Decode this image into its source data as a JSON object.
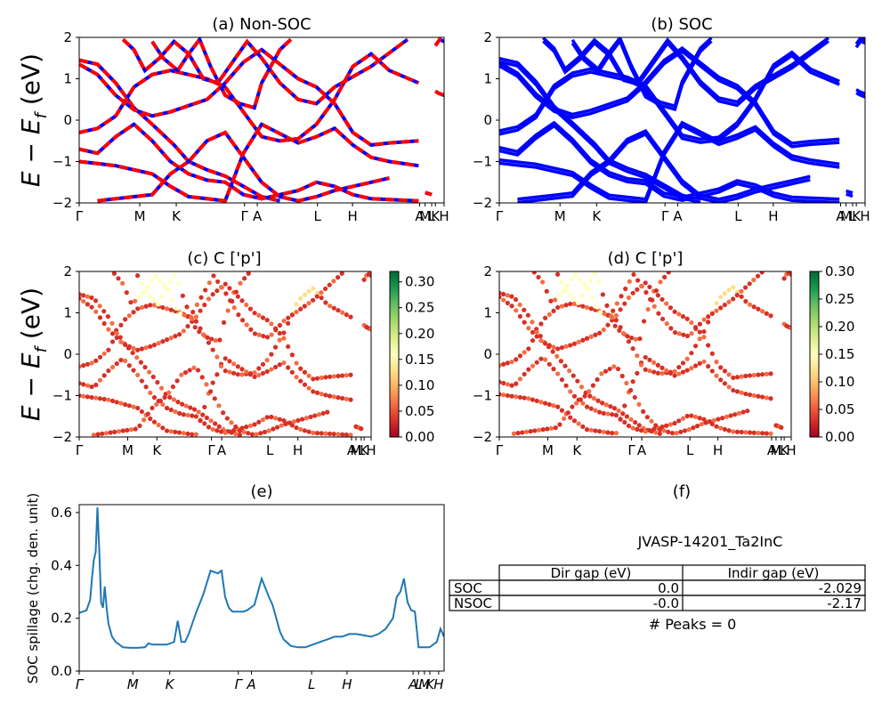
{
  "figure": {
    "ylabel_main": "E − E",
    "ylabel_sub": "f",
    "ylabel_unit": " (eV)",
    "tick_count": 0
  },
  "chart_data": [
    {
      "id": "a",
      "type": "line",
      "title": "(a) Non-SOC",
      "ylim": [
        -2,
        2
      ],
      "yticks": [
        "2",
        "1",
        "0",
        "−1",
        "−2"
      ],
      "xticks": [
        "Γ",
        "M",
        "K",
        "Γ",
        "A",
        "L",
        "H",
        "A",
        "M",
        "L",
        "K",
        "H"
      ],
      "xtick_pos": [
        0,
        0.166,
        0.266,
        0.453,
        0.488,
        0.653,
        0.749,
        0.933,
        0.948,
        0.966,
        0.976,
        1.0
      ],
      "series": [
        {
          "values": [
            1.45,
            1.35,
            0.9,
            0.3,
            -0.1,
            -0.6,
            -1.0,
            -1.2,
            -1.35,
            -1.6,
            -1.85,
            -1.95
          ],
          "x": [
            0,
            0.05,
            0.1,
            0.15,
            0.2,
            0.26,
            0.3,
            0.35,
            0.4,
            0.45,
            0.5,
            0.55
          ]
        },
        {
          "values": [
            1.35,
            1.1,
            0.6,
            0.25,
            0.1,
            0.2,
            0.35,
            0.5,
            0.9,
            1.4,
            1.7,
            1.35,
            1.0,
            0.8,
            0.4,
            -0.3,
            -0.6,
            -0.55,
            -0.5
          ],
          "x": [
            0,
            0.05,
            0.1,
            0.15,
            0.2,
            0.25,
            0.3,
            0.35,
            0.4,
            0.45,
            0.5,
            0.55,
            0.6,
            0.65,
            0.7,
            0.75,
            0.8,
            0.85,
            0.93
          ]
        },
        {
          "values": [
            -0.3,
            -0.2,
            0.1,
            0.8,
            1.1,
            1.2,
            1.1,
            1.0,
            0.8,
            0.2,
            -0.4,
            -0.5,
            -0.45,
            -0.1,
            0.5,
            1.3,
            1.6,
            1.2,
            0.9
          ],
          "x": [
            0,
            0.05,
            0.1,
            0.15,
            0.2,
            0.25,
            0.3,
            0.35,
            0.4,
            0.45,
            0.5,
            0.55,
            0.6,
            0.65,
            0.7,
            0.75,
            0.8,
            0.85,
            0.93
          ]
        },
        {
          "values": [
            -0.7,
            -0.8,
            -0.4,
            -0.1,
            -0.5,
            -1.0,
            -1.3,
            -1.45,
            -1.5,
            -1.8,
            -1.9,
            -1.8,
            -1.7,
            -1.5,
            -1.6,
            -1.8,
            -1.9,
            -1.95
          ],
          "x": [
            0,
            0.05,
            0.1,
            0.15,
            0.2,
            0.25,
            0.3,
            0.35,
            0.4,
            0.45,
            0.5,
            0.55,
            0.6,
            0.65,
            0.7,
            0.75,
            0.8,
            0.93
          ]
        },
        {
          "values": [
            -1.0,
            -1.05,
            -1.1,
            -1.2,
            -1.3,
            -1.6,
            -1.85,
            -1.9,
            -1.95,
            -0.8,
            -0.1,
            -0.55,
            -0.4,
            -0.2,
            -0.6,
            -0.9,
            -1.0,
            -1.1
          ],
          "x": [
            0,
            0.05,
            0.1,
            0.15,
            0.2,
            0.25,
            0.3,
            0.35,
            0.4,
            0.45,
            0.5,
            0.6,
            0.65,
            0.7,
            0.75,
            0.8,
            0.85,
            0.93
          ]
        },
        {
          "values": [
            -1.95,
            -1.9,
            -1.85,
            -1.8,
            -1.3,
            -1.0,
            -0.5,
            -0.3,
            -0.9,
            -1.5,
            -1.85,
            -1.95,
            -1.85,
            -1.7,
            -1.6,
            -1.5,
            -1.4
          ],
          "x": [
            0.05,
            0.1,
            0.15,
            0.2,
            0.25,
            0.3,
            0.35,
            0.4,
            0.45,
            0.5,
            0.55,
            0.6,
            0.65,
            0.7,
            0.75,
            0.8,
            0.85
          ]
        },
        {
          "values": [
            1.95,
            1.7,
            1.2,
            1.5,
            1.9,
            1.6,
            1.0,
            0.9,
            1.4,
            1.9,
            1.5,
            0.9,
            0.5,
            0.4,
            0.8,
            1.3,
            1.95
          ],
          "x": [
            0.12,
            0.15,
            0.18,
            0.22,
            0.26,
            0.3,
            0.34,
            0.38,
            0.42,
            0.46,
            0.5,
            0.55,
            0.6,
            0.65,
            0.7,
            0.8,
            0.9
          ]
        },
        {
          "values": [
            1.9,
            1.5,
            1.2,
            1.6,
            1.95,
            1.3,
            0.6,
            0.4,
            0.3,
            0.9,
            1.7,
            1.95
          ],
          "x": [
            0.2,
            0.23,
            0.27,
            0.3,
            0.33,
            0.36,
            0.4,
            0.44,
            0.48,
            0.5,
            0.55,
            0.58
          ]
        },
        {
          "values": [
            0.7,
            0.65,
            0.6
          ],
          "x": [
            0.976,
            0.985,
            1.0
          ]
        },
        {
          "values": [
            -1.75,
            -1.78,
            -1.8
          ],
          "x": [
            0.948,
            0.96,
            0.966
          ]
        },
        {
          "values": [
            1.8,
            1.95,
            1.9
          ],
          "x": [
            0.976,
            0.988,
            1.0
          ]
        }
      ]
    },
    {
      "id": "b",
      "type": "line",
      "title": "(b) SOC",
      "ylim": [
        -2,
        2
      ],
      "yticks": [
        "2",
        "1",
        "0",
        "−1",
        "−2"
      ],
      "xticks": [
        "Γ",
        "M",
        "K",
        "Γ",
        "A",
        "L",
        "H",
        "A",
        "M",
        "L",
        "K",
        "H"
      ],
      "xtick_pos": [
        0,
        0.166,
        0.266,
        0.453,
        0.488,
        0.653,
        0.749,
        0.933,
        0.948,
        0.966,
        0.976,
        1.0
      ]
    },
    {
      "id": "c",
      "type": "scatter",
      "title": "(c)  C ['p']",
      "ylim": [
        -2,
        2
      ],
      "yticks": [
        "2",
        "1",
        "0",
        "−1",
        "−2"
      ],
      "xticks": [
        "Γ",
        "M",
        "K",
        "Γ",
        "A",
        "L",
        "H",
        "A",
        "M",
        "L",
        "K",
        "H"
      ],
      "xtick_pos": [
        0,
        0.166,
        0.266,
        0.453,
        0.488,
        0.653,
        0.749,
        0.933,
        0.948,
        0.966,
        0.976,
        1.0
      ],
      "colorbar": {
        "ticks": [
          "0.00",
          "0.05",
          "0.10",
          "0.15",
          "0.20",
          "0.25",
          "0.30"
        ],
        "max": 0.32
      }
    },
    {
      "id": "d",
      "type": "scatter",
      "title": "(d) C ['p']",
      "ylim": [
        -2,
        2
      ],
      "yticks": [
        "2",
        "1",
        "0",
        "−1",
        "−2"
      ],
      "xticks": [
        "Γ",
        "M",
        "K",
        "Γ",
        "A",
        "L",
        "H",
        "A",
        "M",
        "L",
        "K",
        "H"
      ],
      "xtick_pos": [
        0,
        0.166,
        0.266,
        0.453,
        0.488,
        0.653,
        0.749,
        0.933,
        0.948,
        0.966,
        0.976,
        1.0
      ],
      "colorbar": {
        "ticks": [
          "0.00",
          "0.05",
          "0.10",
          "0.15",
          "0.20",
          "0.25",
          "0.30"
        ],
        "max": 0.3
      }
    },
    {
      "id": "e",
      "type": "line",
      "title": "(e)",
      "ylabel": "SOC spillage (chg. den. unit)",
      "ylim": [
        0,
        0.63
      ],
      "yticks": [
        "0.0",
        "0.2",
        "0.4",
        "0.6"
      ],
      "xticks": [
        "Γ",
        "M",
        "K",
        "Γ",
        "A",
        "L",
        "H",
        "A",
        "L",
        "M",
        "K",
        "H"
      ],
      "xtick_pos": [
        0,
        0.147,
        0.248,
        0.436,
        0.472,
        0.637,
        0.734,
        0.915,
        0.93,
        0.946,
        0.961,
        0.985
      ],
      "series": [
        {
          "x": [
            0,
            0.02,
            0.03,
            0.035,
            0.04,
            0.045,
            0.05,
            0.055,
            0.06,
            0.065,
            0.07,
            0.075,
            0.08,
            0.09,
            0.1,
            0.12,
            0.14,
            0.16,
            0.18,
            0.19,
            0.2,
            0.22,
            0.24,
            0.26,
            0.27,
            0.28,
            0.29,
            0.3,
            0.32,
            0.34,
            0.36,
            0.38,
            0.39,
            0.4,
            0.41,
            0.42,
            0.43,
            0.44,
            0.45,
            0.46,
            0.48,
            0.5,
            0.52,
            0.53,
            0.54,
            0.55,
            0.56,
            0.58,
            0.6,
            0.62,
            0.64,
            0.66,
            0.68,
            0.69,
            0.7,
            0.72,
            0.74,
            0.76,
            0.78,
            0.8,
            0.82,
            0.84,
            0.86,
            0.87,
            0.88,
            0.89,
            0.9,
            0.91,
            0.92,
            0.93,
            0.94,
            0.95,
            0.96,
            0.97,
            0.98,
            0.99,
            1.0
          ],
          "values": [
            0.22,
            0.23,
            0.27,
            0.35,
            0.42,
            0.45,
            0.62,
            0.46,
            0.26,
            0.24,
            0.32,
            0.24,
            0.18,
            0.13,
            0.11,
            0.09,
            0.088,
            0.088,
            0.09,
            0.105,
            0.1,
            0.1,
            0.1,
            0.11,
            0.19,
            0.11,
            0.11,
            0.14,
            0.22,
            0.29,
            0.38,
            0.37,
            0.38,
            0.28,
            0.24,
            0.225,
            0.225,
            0.225,
            0.225,
            0.23,
            0.25,
            0.35,
            0.28,
            0.25,
            0.2,
            0.15,
            0.12,
            0.095,
            0.09,
            0.09,
            0.1,
            0.11,
            0.12,
            0.125,
            0.13,
            0.13,
            0.14,
            0.14,
            0.135,
            0.13,
            0.14,
            0.16,
            0.2,
            0.28,
            0.3,
            0.35,
            0.26,
            0.23,
            0.225,
            0.09,
            0.09,
            0.09,
            0.09,
            0.1,
            0.11,
            0.16,
            0.13
          ]
        }
      ]
    }
  ],
  "panel_f": {
    "title": "(f)",
    "name": "JVASP-14201_Ta2InC",
    "headers": [
      "",
      "Dir gap (eV)",
      "Indir gap (eV)"
    ],
    "rows": [
      [
        "SOC",
        "0.0",
        "-2.029"
      ],
      [
        "NSOC",
        "-0.0",
        "-2.17"
      ]
    ],
    "peaks": "# Peaks = 0"
  },
  "colors": {
    "line_red": "#ff0000",
    "line_blue": "#0000ff",
    "spillage": "#1f77b4"
  }
}
